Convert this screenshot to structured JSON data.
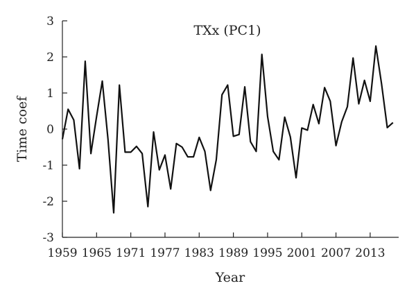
{
  "chart_data": {
    "type": "line",
    "title": "TXx (PC1)",
    "xlabel": "Year",
    "ylabel": "Time coef",
    "xlim": [
      1959,
      2018
    ],
    "ylim": [
      -3,
      3
    ],
    "xticks": [
      1959,
      1965,
      1971,
      1977,
      1983,
      1989,
      1995,
      2001,
      2007,
      2013
    ],
    "yticks": [
      3,
      2,
      1,
      0,
      -1,
      -2,
      -3
    ],
    "series": [
      {
        "x": [
          1959,
          1960,
          1961,
          1962,
          1963,
          1964,
          1965,
          1966,
          1967,
          1968,
          1969,
          1970,
          1971,
          1972,
          1973,
          1974,
          1975,
          1976,
          1977,
          1978,
          1979,
          1980,
          1981,
          1982,
          1983,
          1984,
          1985,
          1986,
          1987,
          1988,
          1989,
          1990,
          1991,
          1992,
          1993,
          1994,
          1995,
          1996,
          1997,
          1998,
          1999,
          2000,
          2001,
          2002,
          2003,
          2004,
          2005,
          2006,
          2007,
          2008,
          2009,
          2010,
          2011,
          2012,
          2013,
          2014,
          2015,
          2016,
          2017
        ],
        "values": [
          -0.28,
          0.55,
          0.25,
          -1.1,
          1.88,
          -0.68,
          0.35,
          1.33,
          -0.28,
          -2.32,
          1.22,
          -0.64,
          -0.64,
          -0.48,
          -0.68,
          -2.15,
          -0.08,
          -1.13,
          -0.72,
          -1.66,
          -0.4,
          -0.5,
          -0.77,
          -0.77,
          -0.23,
          -0.62,
          -1.7,
          -0.85,
          0.95,
          1.22,
          -0.2,
          -0.15,
          1.17,
          -0.35,
          -0.62,
          2.07,
          0.35,
          -0.62,
          -0.85,
          0.33,
          -0.22,
          -1.35,
          0.03,
          -0.03,
          0.68,
          0.15,
          1.15,
          0.77,
          -0.46,
          0.2,
          0.62,
          1.97,
          0.7,
          1.35,
          0.77,
          2.3,
          1.25,
          0.04,
          0.18
        ]
      }
    ]
  }
}
